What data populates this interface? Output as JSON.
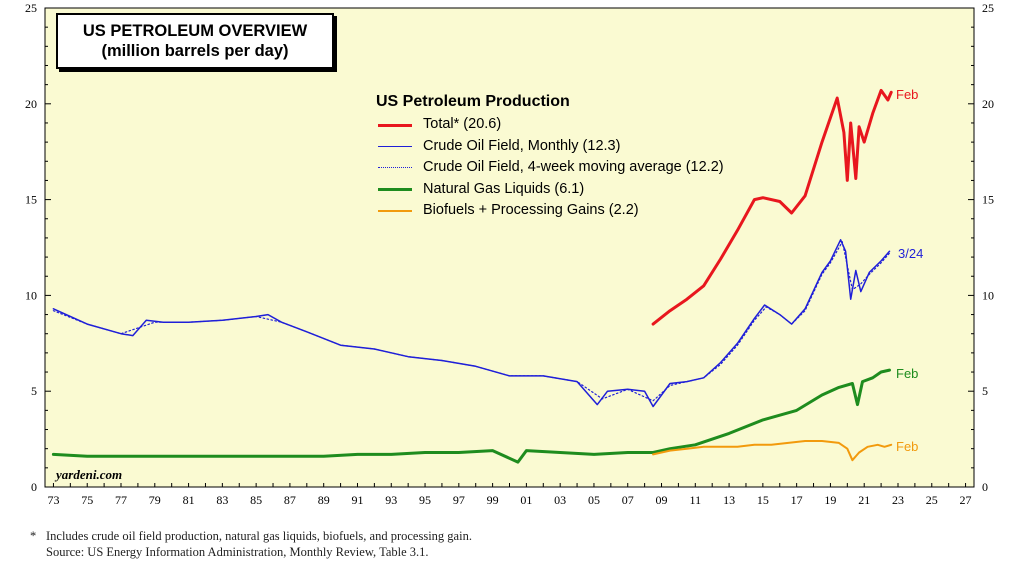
{
  "title": {
    "line1": "US PETROLEUM OVERVIEW",
    "line2": "(million barrels per day)"
  },
  "legend": {
    "title": "US Petroleum Production",
    "items": [
      {
        "label": "Total* (20.6)",
        "color": "#e8171e",
        "style": "solid",
        "width": 3
      },
      {
        "label": "Crude Oil Field, Monthly (12.3)",
        "color": "#1f1fd8",
        "style": "solid",
        "width": 1.5
      },
      {
        "label": "Crude Oil Field, 4-week moving average (12.2)",
        "color": "#1f1fd8",
        "style": "dotted",
        "width": 1.5
      },
      {
        "label": "Natural Gas Liquids (6.1)",
        "color": "#1e8c1e",
        "style": "solid",
        "width": 3
      },
      {
        "label": "Biofuels + Processing Gains (2.2)",
        "color": "#f29a0d",
        "style": "solid",
        "width": 2
      }
    ]
  },
  "annotations": {
    "total": "Feb",
    "crude": "3/24",
    "ngl": "Feb",
    "biofuels": "Feb"
  },
  "branding": "yardeni.com",
  "footnote": {
    "line1_star": "*",
    "line1": "Includes crude oil field production, natural gas liquids, biofuels, and processing gain.",
    "line2": "Source: US Energy Information Administration, Monthly Review, Table 3.1."
  },
  "colors": {
    "plot_bg": "#fafad2",
    "total": "#e8171e",
    "crude": "#1f1fd8",
    "ngl": "#1e8c1e",
    "biofuels": "#f29a0d"
  },
  "chart_data": {
    "type": "line",
    "title": "US PETROLEUM OVERVIEW (million barrels per day)",
    "xlim": [
      1972.5,
      2027.5
    ],
    "ylim": [
      0,
      25
    ],
    "yticks": [
      0,
      5,
      10,
      15,
      20,
      25
    ],
    "xtick_labels": [
      "73",
      "75",
      "77",
      "79",
      "81",
      "83",
      "85",
      "87",
      "89",
      "91",
      "93",
      "95",
      "97",
      "99",
      "01",
      "03",
      "05",
      "07",
      "09",
      "11",
      "13",
      "15",
      "17",
      "19",
      "21",
      "23",
      "25",
      "27"
    ],
    "xtick_years": [
      1973,
      1975,
      1977,
      1979,
      1981,
      1983,
      1985,
      1987,
      1989,
      1991,
      1993,
      1995,
      1997,
      1999,
      2001,
      2003,
      2005,
      2007,
      2009,
      2011,
      2013,
      2015,
      2017,
      2019,
      2021,
      2023,
      2025,
      2027
    ],
    "grid": false,
    "legend_position": "top-center",
    "series": [
      {
        "name": "Total* (20.6)",
        "key": "total",
        "x": [
          2008.5,
          2009.5,
          2010.5,
          2011.5,
          2012.5,
          2013.5,
          2014.5,
          2015.0,
          2016.0,
          2016.7,
          2017.5,
          2018.5,
          2019.4,
          2019.8,
          2020.0,
          2020.2,
          2020.5,
          2020.7,
          2021.0,
          2021.5,
          2022.0,
          2022.4,
          2022.6
        ],
        "y": [
          8.5,
          9.2,
          9.8,
          10.5,
          11.9,
          13.4,
          15.0,
          15.1,
          14.9,
          14.3,
          15.2,
          18.0,
          20.3,
          18.5,
          16.0,
          19.0,
          16.1,
          18.8,
          18.0,
          19.5,
          20.7,
          20.2,
          20.6
        ]
      },
      {
        "name": "Crude Oil Field, Monthly (12.3)",
        "key": "crude",
        "x": [
          1973.0,
          1975.0,
          1977.0,
          1977.7,
          1978.5,
          1979.5,
          1981.0,
          1983.0,
          1985.0,
          1985.7,
          1986.5,
          1988.0,
          1990.0,
          1992.0,
          1994.0,
          1996.0,
          1998.0,
          2000.0,
          2002.0,
          2004.0,
          2005.2,
          2005.8,
          2007.0,
          2008.0,
          2008.5,
          2009.5,
          2010.5,
          2011.5,
          2012.5,
          2013.5,
          2014.5,
          2015.1,
          2016.0,
          2016.7,
          2017.5,
          2018.5,
          2019.0,
          2019.6,
          2019.9,
          2020.2,
          2020.5,
          2020.8,
          2021.3,
          2022.0,
          2022.5
        ],
        "y": [
          9.3,
          8.5,
          8.0,
          7.9,
          8.7,
          8.6,
          8.6,
          8.7,
          8.9,
          9.0,
          8.6,
          8.1,
          7.4,
          7.2,
          6.8,
          6.6,
          6.3,
          5.8,
          5.8,
          5.5,
          4.3,
          5.0,
          5.1,
          5.0,
          4.2,
          5.4,
          5.5,
          5.7,
          6.5,
          7.5,
          8.8,
          9.5,
          9.0,
          8.5,
          9.3,
          11.2,
          11.8,
          12.9,
          12.3,
          9.8,
          11.3,
          10.2,
          11.2,
          11.8,
          12.3
        ]
      },
      {
        "name": "Crude Oil Field, 4-week moving average (12.2)",
        "key": "crude_ma",
        "x": [
          1973.0,
          1975.0,
          1977.0,
          1979.0,
          1981.0,
          1983.0,
          1985.0,
          1986.5,
          1988.0,
          1990.0,
          1992.0,
          1994.0,
          1996.0,
          1998.0,
          2000.0,
          2002.0,
          2004.0,
          2005.5,
          2007.0,
          2008.5,
          2009.5,
          2010.5,
          2011.5,
          2012.5,
          2013.5,
          2014.5,
          2015.2,
          2016.0,
          2016.7,
          2017.5,
          2018.5,
          2019.0,
          2019.7,
          2020.3,
          2020.8,
          2021.3,
          2022.0,
          2022.5
        ],
        "y": [
          9.2,
          8.5,
          8.0,
          8.6,
          8.6,
          8.7,
          8.9,
          8.6,
          8.1,
          7.4,
          7.2,
          6.8,
          6.6,
          6.3,
          5.8,
          5.8,
          5.5,
          4.6,
          5.1,
          4.5,
          5.3,
          5.5,
          5.7,
          6.4,
          7.4,
          8.7,
          9.4,
          9.0,
          8.5,
          9.2,
          11.1,
          11.7,
          12.8,
          10.3,
          10.6,
          11.1,
          11.7,
          12.2
        ]
      },
      {
        "name": "Natural Gas Liquids (6.1)",
        "key": "ngl",
        "x": [
          1973.0,
          1975.0,
          1977.0,
          1979.0,
          1981.0,
          1983.0,
          1985.0,
          1987.0,
          1989.0,
          1991.0,
          1993.0,
          1995.0,
          1997.0,
          1999.0,
          2000.5,
          2001.0,
          2003.0,
          2005.0,
          2007.0,
          2008.5,
          2009.5,
          2011.0,
          2013.0,
          2015.0,
          2017.0,
          2018.5,
          2019.5,
          2020.3,
          2020.6,
          2020.9,
          2021.5,
          2022.0,
          2022.5
        ],
        "y": [
          1.7,
          1.6,
          1.6,
          1.6,
          1.6,
          1.6,
          1.6,
          1.6,
          1.6,
          1.7,
          1.7,
          1.8,
          1.8,
          1.9,
          1.3,
          1.9,
          1.8,
          1.7,
          1.8,
          1.8,
          2.0,
          2.2,
          2.8,
          3.5,
          4.0,
          4.8,
          5.2,
          5.4,
          4.3,
          5.5,
          5.7,
          6.0,
          6.1
        ]
      },
      {
        "name": "Biofuels + Processing Gains (2.2)",
        "key": "biofuels",
        "x": [
          2008.5,
          2009.5,
          2010.5,
          2011.5,
          2012.5,
          2013.5,
          2014.5,
          2015.5,
          2016.5,
          2017.5,
          2018.5,
          2019.5,
          2020.0,
          2020.3,
          2020.7,
          2021.2,
          2021.8,
          2022.2,
          2022.6
        ],
        "y": [
          1.7,
          1.9,
          2.0,
          2.1,
          2.1,
          2.1,
          2.2,
          2.2,
          2.3,
          2.4,
          2.4,
          2.3,
          2.0,
          1.4,
          1.8,
          2.1,
          2.2,
          2.1,
          2.2
        ]
      }
    ]
  }
}
